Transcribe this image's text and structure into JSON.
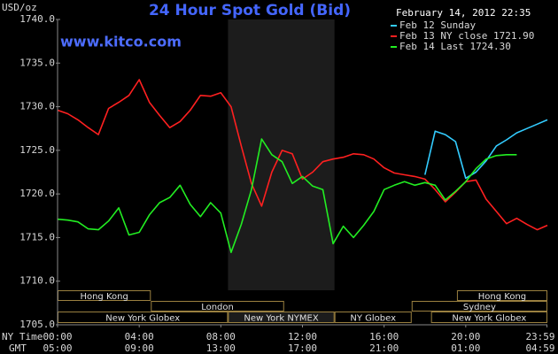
{
  "chart_data": {
    "type": "line",
    "title": "24 Hour Spot Gold (Bid)",
    "subtitle": "www.kitco.com",
    "timestamp": "February 14, 2012 22:35",
    "y_axis_label": "USD/oz",
    "x_axis_label": "NY Time",
    "x2_axis_label": "GMT",
    "xlim": [
      0,
      24
    ],
    "ylim": [
      1705,
      1740
    ],
    "yticks": [
      {
        "value": 1705,
        "label": "1705.0"
      },
      {
        "value": 1710,
        "label": "1710.0"
      },
      {
        "value": 1715,
        "label": "1715.0"
      },
      {
        "value": 1720,
        "label": "1720.0"
      },
      {
        "value": 1725,
        "label": "1725.0"
      },
      {
        "value": 1730,
        "label": "1730.0"
      },
      {
        "value": 1735,
        "label": "1735.0"
      },
      {
        "value": 1740,
        "label": "1740.0"
      }
    ],
    "xticks": [
      {
        "value": 0,
        "label": "00:00"
      },
      {
        "value": 4,
        "label": "04:00"
      },
      {
        "value": 8,
        "label": "08:00"
      },
      {
        "value": 12,
        "label": "12:00"
      },
      {
        "value": 16,
        "label": "16:00"
      },
      {
        "value": 20,
        "label": "20:00"
      },
      {
        "value": 23.98,
        "label": "23:59"
      }
    ],
    "x2ticks": [
      {
        "value": 0,
        "label": "05:00"
      },
      {
        "value": 4,
        "label": "09:00"
      },
      {
        "value": 8,
        "label": "13:00"
      },
      {
        "value": 12,
        "label": "17:00"
      },
      {
        "value": 16,
        "label": "21:00"
      },
      {
        "value": 20,
        "label": "01:00"
      },
      {
        "value": 23.98,
        "label": "04:59"
      }
    ],
    "grid": false,
    "x": [
      0,
      0.5,
      1,
      1.5,
      2,
      2.5,
      3,
      3.5,
      4,
      4.5,
      5,
      5.5,
      6,
      6.5,
      7,
      7.5,
      8,
      8.5,
      9,
      9.5,
      10,
      10.5,
      11,
      11.5,
      12,
      12.5,
      13,
      13.5,
      14,
      14.5,
      15,
      15.5,
      16,
      16.5,
      17,
      17.5,
      18,
      18.5,
      19,
      19.5,
      20,
      20.5,
      21,
      21.5,
      22,
      22.5,
      23,
      23.5,
      24
    ],
    "series": [
      {
        "name": "Feb 12 Sunday",
        "color": "#33ccff",
        "values": [
          null,
          null,
          null,
          null,
          null,
          null,
          null,
          null,
          null,
          null,
          null,
          null,
          null,
          null,
          null,
          null,
          null,
          null,
          null,
          null,
          null,
          null,
          null,
          null,
          null,
          null,
          null,
          null,
          null,
          null,
          null,
          null,
          null,
          null,
          null,
          null,
          1722.2,
          1727.2,
          1726.8,
          1726.0,
          1721.8,
          1722.5,
          1723.8,
          1725.5,
          1726.2,
          1727.0,
          1727.5,
          1728.0,
          1728.5
        ]
      },
      {
        "name": "Feb 13 NY close 1721.90",
        "color": "#ff2020",
        "values": [
          1729.6,
          1729.2,
          1728.5,
          1727.6,
          1726.8,
          1729.8,
          1730.5,
          1731.3,
          1733.1,
          1730.5,
          1729.0,
          1727.6,
          1728.3,
          1729.6,
          1731.3,
          1731.2,
          1731.6,
          1730.0,
          1725.5,
          1721.2,
          1718.6,
          1722.5,
          1725.0,
          1724.6,
          1721.7,
          1722.5,
          1723.7,
          1724.0,
          1724.2,
          1724.6,
          1724.5,
          1724.0,
          1723.0,
          1722.4,
          1722.2,
          1722.0,
          1721.7,
          1720.5,
          1719.1,
          1720.2,
          1721.4,
          1721.6,
          1719.4,
          1718.0,
          1716.6,
          1717.2,
          1716.5,
          1715.9,
          1716.4
        ]
      },
      {
        "name": "Feb 14 Last 1724.30",
        "color": "#22ee22",
        "values": [
          1717.1,
          1717.0,
          1716.8,
          1716.0,
          1715.9,
          1716.9,
          1718.4,
          1715.3,
          1715.6,
          1717.6,
          1719.0,
          1719.6,
          1721.0,
          1718.8,
          1717.4,
          1719.0,
          1717.8,
          1713.3,
          1716.5,
          1720.5,
          1726.3,
          1724.5,
          1723.7,
          1721.2,
          1722.0,
          1720.9,
          1720.5,
          1714.3,
          1716.3,
          1715.0,
          1716.4,
          1718.0,
          1720.5,
          1721.0,
          1721.4,
          1721.0,
          1721.3,
          1721.0,
          1719.3,
          1720.3,
          1721.4,
          1722.9,
          1724.0,
          1724.4,
          1724.5,
          1724.5,
          null,
          null,
          null
        ]
      }
    ],
    "sessions": [
      [
        {
          "label": "Hong Kong",
          "start": 0,
          "end": 4.57
        },
        {
          "label": "Hong Kong",
          "start": 19.57,
          "end": 24
        }
      ],
      [
        {
          "label": "London",
          "start": 4.57,
          "end": 11.1
        },
        {
          "label": "Sydney",
          "start": 17.35,
          "end": 24
        }
      ],
      [
        {
          "label": "New York Globex",
          "start": 0,
          "end": 8.35
        },
        {
          "label": "New York NYMEX",
          "start": 8.35,
          "end": 13.57,
          "shaded": true
        },
        {
          "label": "NY Globex",
          "start": 13.57,
          "end": 17.35
        },
        {
          "label": "New York Globex",
          "start": 18.3,
          "end": 24
        }
      ]
    ]
  }
}
